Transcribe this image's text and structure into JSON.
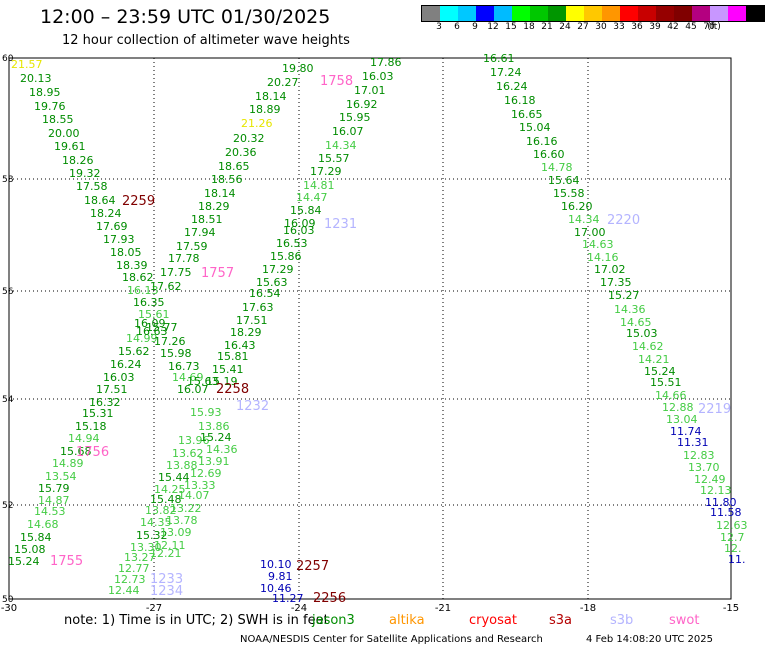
{
  "header": {
    "title": "12:00 – 23:59 UTC 01/30/2025",
    "subtitle": "12 hour collection of altimeter wave heights"
  },
  "legend": {
    "unit": "(ft)",
    "colors": [
      "#808080",
      "#00ffff",
      "#00c8ff",
      "#0000ff",
      "#00bbff",
      "#00ff00",
      "#00c800",
      "#009600",
      "#ffff00",
      "#ffc800",
      "#ff9600",
      "#ff0000",
      "#c80000",
      "#960000",
      "#800000",
      "#b40080",
      "#c896ff",
      "#ff00ff",
      "#000000"
    ],
    "labels": [
      "3",
      "6",
      "9",
      "12",
      "15",
      "18",
      "21",
      "24",
      "27",
      "30",
      "33",
      "36",
      "39",
      "42",
      "45",
      "70"
    ]
  },
  "axes": {
    "lat_labels": [
      "60",
      "58",
      "56",
      "54",
      "52",
      "50"
    ],
    "lon_labels": [
      "-30",
      "-27",
      "-24",
      "-21",
      "-18",
      "-15"
    ]
  },
  "text_colors": {
    "dg": "#008c00",
    "lg": "#44cc44",
    "nv": "#0000b4",
    "ye": "#e6e600",
    "mr": "#800000",
    "lv": "#b4b4ff",
    "pk": "#ff64c8"
  },
  "tracks": [
    {
      "id": "2259",
      "color": "mr"
    },
    {
      "id": "1756",
      "color": "pk"
    },
    {
      "id": "1755",
      "color": "pk"
    },
    {
      "id": "1757",
      "color": "pk"
    },
    {
      "id": "2258",
      "color": "mr"
    },
    {
      "id": "1232",
      "color": "lv"
    },
    {
      "id": "1233",
      "color": "lv"
    },
    {
      "id": "1234",
      "color": "lv"
    },
    {
      "id": "1758",
      "color": "pk"
    },
    {
      "id": "1231",
      "color": "lv"
    },
    {
      "id": "2257",
      "color": "mr"
    },
    {
      "id": "2256",
      "color": "mr"
    },
    {
      "id": "2220",
      "color": "lv"
    },
    {
      "id": "2219",
      "color": "lv"
    }
  ],
  "observations": [
    [
      "21.57",
      "ye"
    ],
    [
      "20.13",
      "dg"
    ],
    [
      "18.95",
      "dg"
    ],
    [
      "19.76",
      "dg"
    ],
    [
      "18.55",
      "dg"
    ],
    [
      "20.00",
      "dg"
    ],
    [
      "19.61",
      "dg"
    ],
    [
      "18.26",
      "dg"
    ],
    [
      "19.32",
      "dg"
    ],
    [
      "17.58",
      "dg"
    ],
    [
      "18.64",
      "dg"
    ],
    [
      "18.24",
      "dg"
    ],
    [
      "17.69",
      "dg"
    ],
    [
      "17.93",
      "dg"
    ],
    [
      "18.05",
      "dg"
    ],
    [
      "18.39",
      "dg"
    ],
    [
      "18.62",
      "dg"
    ],
    [
      "16.13",
      "lg"
    ],
    [
      "16.35",
      "dg"
    ],
    [
      "15.61",
      "lg"
    ],
    [
      "16.09",
      "dg"
    ],
    [
      "14.99",
      "lg"
    ],
    [
      "15.62",
      "dg"
    ],
    [
      "16.24",
      "dg"
    ],
    [
      "16.03",
      "dg"
    ],
    [
      "17.51",
      "dg"
    ],
    [
      "16.32",
      "dg"
    ],
    [
      "15.31",
      "dg"
    ],
    [
      "15.18",
      "dg"
    ],
    [
      "14.94",
      "lg"
    ],
    [
      "15.68",
      "dg"
    ],
    [
      "14.89",
      "lg"
    ],
    [
      "13.54",
      "lg"
    ],
    [
      "15.79",
      "dg"
    ],
    [
      "14.87",
      "lg"
    ],
    [
      "14.53",
      "lg"
    ],
    [
      "14.68",
      "lg"
    ],
    [
      "15.84",
      "dg"
    ],
    [
      "15.08",
      "dg"
    ],
    [
      "15.24",
      "dg"
    ],
    [
      "17.62",
      "dg"
    ],
    [
      "17.75",
      "dg"
    ],
    [
      "17.78",
      "dg"
    ],
    [
      "17.59",
      "dg"
    ],
    [
      "17.94",
      "dg"
    ],
    [
      "18.51",
      "dg"
    ],
    [
      "18.29",
      "dg"
    ],
    [
      "18.14",
      "dg"
    ],
    [
      "18.56",
      "dg"
    ],
    [
      "18.65",
      "dg"
    ],
    [
      "20.36",
      "dg"
    ],
    [
      "20.32",
      "dg"
    ],
    [
      "21.26",
      "ye"
    ],
    [
      "18.89",
      "dg"
    ],
    [
      "18.14",
      "dg"
    ],
    [
      "20.27",
      "dg"
    ],
    [
      "19.80",
      "dg"
    ],
    [
      "16.63",
      "dg"
    ],
    [
      "15.77",
      "dg"
    ],
    [
      "17.26",
      "dg"
    ],
    [
      "15.98",
      "dg"
    ],
    [
      "16.73",
      "dg"
    ],
    [
      "14.69",
      "lg"
    ],
    [
      "16.07",
      "dg"
    ],
    [
      "15.63",
      "dg"
    ],
    [
      "15.93",
      "lg"
    ],
    [
      "13.86",
      "lg"
    ],
    [
      "13.96",
      "lg"
    ],
    [
      "13.62",
      "lg"
    ],
    [
      "13.88",
      "lg"
    ],
    [
      "15.44",
      "dg"
    ],
    [
      "14.25",
      "lg"
    ],
    [
      "15.48",
      "dg"
    ],
    [
      "13.82",
      "lg"
    ],
    [
      "14.35",
      "lg"
    ],
    [
      "15.32",
      "dg"
    ],
    [
      "13.30",
      "lg"
    ],
    [
      "13.27",
      "lg"
    ],
    [
      "12.77",
      "lg"
    ],
    [
      "12.73",
      "lg"
    ],
    [
      "12.44",
      "lg"
    ],
    [
      "17.86",
      "dg"
    ],
    [
      "16.03",
      "dg"
    ],
    [
      "17.01",
      "dg"
    ],
    [
      "16.92",
      "dg"
    ],
    [
      "15.95",
      "dg"
    ],
    [
      "16.07",
      "dg"
    ],
    [
      "14.34",
      "lg"
    ],
    [
      "15.57",
      "dg"
    ],
    [
      "17.29",
      "dg"
    ],
    [
      "14.81",
      "lg"
    ],
    [
      "14.47",
      "lg"
    ],
    [
      "15.84",
      "dg"
    ],
    [
      "16.09",
      "dg"
    ],
    [
      "16.03",
      "dg"
    ],
    [
      "16.53",
      "dg"
    ],
    [
      "15.86",
      "dg"
    ],
    [
      "17.29",
      "dg"
    ],
    [
      "15.63",
      "dg"
    ],
    [
      "16.54",
      "dg"
    ],
    [
      "17.63",
      "dg"
    ],
    [
      "17.51",
      "dg"
    ],
    [
      "18.29",
      "dg"
    ],
    [
      "16.43",
      "dg"
    ],
    [
      "15.81",
      "dg"
    ],
    [
      "15.41",
      "dg"
    ],
    [
      "15.19",
      "dg"
    ],
    [
      "15.24",
      "dg"
    ],
    [
      "14.36",
      "lg"
    ],
    [
      "13.91",
      "lg"
    ],
    [
      "12.69",
      "lg"
    ],
    [
      "13.33",
      "lg"
    ],
    [
      "14.07",
      "lg"
    ],
    [
      "13.22",
      "lg"
    ],
    [
      "13.78",
      "lg"
    ],
    [
      "13.09",
      "lg"
    ],
    [
      "12.11",
      "lg"
    ],
    [
      "12.21",
      "lg"
    ],
    [
      "10.10",
      "nv"
    ],
    [
      "9.81",
      "nv"
    ],
    [
      "10.46",
      "nv"
    ],
    [
      "11.27",
      "nv"
    ],
    [
      "16.61",
      "dg"
    ],
    [
      "17.24",
      "dg"
    ],
    [
      "16.24",
      "dg"
    ],
    [
      "16.18",
      "dg"
    ],
    [
      "16.65",
      "dg"
    ],
    [
      "15.04",
      "dg"
    ],
    [
      "16.16",
      "dg"
    ],
    [
      "16.60",
      "dg"
    ],
    [
      "14.78",
      "lg"
    ],
    [
      "15.64",
      "dg"
    ],
    [
      "15.58",
      "dg"
    ],
    [
      "16.20",
      "dg"
    ],
    [
      "14.34",
      "lg"
    ],
    [
      "17.00",
      "dg"
    ],
    [
      "14.63",
      "lg"
    ],
    [
      "14.16",
      "lg"
    ],
    [
      "17.02",
      "dg"
    ],
    [
      "17.35",
      "dg"
    ],
    [
      "15.27",
      "dg"
    ],
    [
      "14.36",
      "lg"
    ],
    [
      "14.65",
      "lg"
    ],
    [
      "15.03",
      "dg"
    ],
    [
      "14.62",
      "lg"
    ],
    [
      "14.21",
      "lg"
    ],
    [
      "15.24",
      "dg"
    ],
    [
      "15.51",
      "dg"
    ],
    [
      "14.66",
      "lg"
    ],
    [
      "12.88",
      "lg"
    ],
    [
      "13.04",
      "lg"
    ],
    [
      "11.74",
      "nv"
    ],
    [
      "11.31",
      "nv"
    ],
    [
      "12.83",
      "lg"
    ],
    [
      "13.70",
      "lg"
    ],
    [
      "12.49",
      "lg"
    ],
    [
      "12.13",
      "lg"
    ],
    [
      "11.80",
      "nv"
    ],
    [
      "11.58",
      "nv"
    ],
    [
      "12.63",
      "lg"
    ],
    [
      "12.7",
      "lg"
    ],
    [
      "12.",
      "lg"
    ],
    [
      "11.",
      "nv"
    ]
  ],
  "footer": {
    "note": "note:  1) Time is in UTC; 2) SWH is in feet",
    "satellites": [
      {
        "name": "jason3",
        "color": "#008c00"
      },
      {
        "name": "altika",
        "color": "#ff9600"
      },
      {
        "name": "cryosat",
        "color": "#ff0000"
      },
      {
        "name": "s3a",
        "color": "#b40000"
      },
      {
        "name": "s3b",
        "color": "#b4b4ff"
      },
      {
        "name": "swot",
        "color": "#ff64c8"
      }
    ],
    "credit": "NOAA/NESDIS Center for Satellite Applications and Research",
    "timestamp": "4 Feb 14:08:20 UTC 2025"
  }
}
